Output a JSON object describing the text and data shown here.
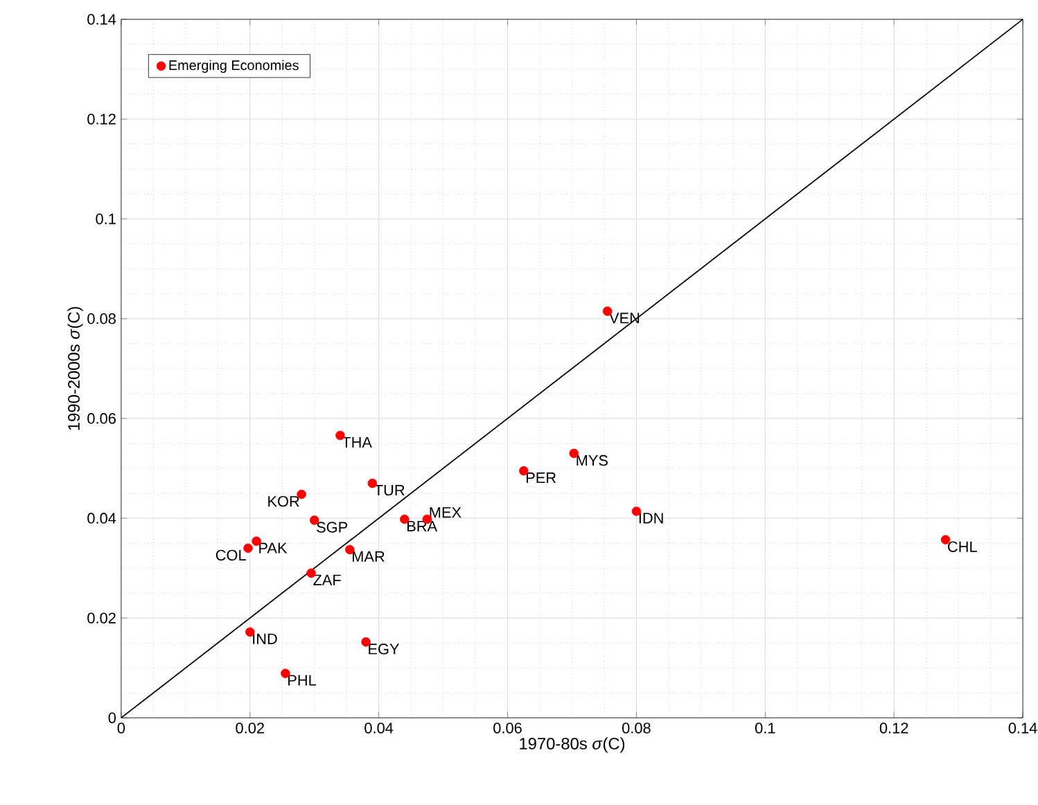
{
  "chart_data": {
    "type": "scatter",
    "xlabel": "1970-80s *σ*(C)",
    "ylabel": "1990-2000s *σ*(C)",
    "xlim": [
      0,
      0.14
    ],
    "ylim": [
      0,
      0.14
    ],
    "xticks": [
      0,
      0.02,
      0.04,
      0.06,
      0.08,
      0.1,
      0.12,
      0.14
    ],
    "yticks": [
      0,
      0.02,
      0.04,
      0.06,
      0.08,
      0.1,
      0.12,
      0.14
    ],
    "grid": true,
    "legend": "top left",
    "series": [
      {
        "name": "Emerging Economies",
        "color": "#ff0000",
        "marker": "circle",
        "x": [
          0.0755,
          0.0703,
          0.0625,
          0.08,
          0.128,
          0.034,
          0.039,
          0.028,
          0.03,
          0.044,
          0.0475,
          0.021,
          0.0197,
          0.0355,
          0.0295,
          0.02,
          0.038,
          0.0255
        ],
        "values": [
          0.0815,
          0.053,
          0.0495,
          0.0414,
          0.0357,
          0.0566,
          0.047,
          0.0448,
          0.0396,
          0.0398,
          0.0398,
          0.0354,
          0.034,
          0.0337,
          0.029,
          0.0172,
          0.0152,
          0.0089
        ]
      },
      {
        "type": "line",
        "color": "#000000",
        "marker": "none",
        "x": [
          0,
          0.14
        ],
        "values": [
          0,
          0.14
        ]
      }
    ],
    "annotations": [
      {
        "text": "VEN",
        "x": 0.0755,
        "y": 0.0815
      },
      {
        "text": "MYS",
        "x": 0.0703,
        "y": 0.053
      },
      {
        "text": "PER",
        "x": 0.0625,
        "y": 0.0495
      },
      {
        "text": "IDN",
        "x": 0.08,
        "y": 0.0414
      },
      {
        "text": "CHL",
        "x": 0.128,
        "y": 0.0357
      },
      {
        "text": "THA",
        "x": 0.034,
        "y": 0.0566
      },
      {
        "text": "TUR",
        "x": 0.039,
        "y": 0.047
      },
      {
        "text": "KOR",
        "x": 0.028,
        "y": 0.0448
      },
      {
        "text": "SGP",
        "x": 0.03,
        "y": 0.0396
      },
      {
        "text": "BRA",
        "x": 0.044,
        "y": 0.0398
      },
      {
        "text": "MEX",
        "x": 0.0475,
        "y": 0.0398
      },
      {
        "text": "PAK",
        "x": 0.021,
        "y": 0.0354
      },
      {
        "text": "COL",
        "x": 0.0197,
        "y": 0.034
      },
      {
        "text": "MAR",
        "x": 0.0355,
        "y": 0.0337
      },
      {
        "text": "ZAF",
        "x": 0.0295,
        "y": 0.029
      },
      {
        "text": "IND",
        "x": 0.02,
        "y": 0.0172
      },
      {
        "text": "EGY",
        "x": 0.038,
        "y": 0.0152
      },
      {
        "text": "PHL",
        "x": 0.0255,
        "y": 0.0089
      }
    ]
  }
}
